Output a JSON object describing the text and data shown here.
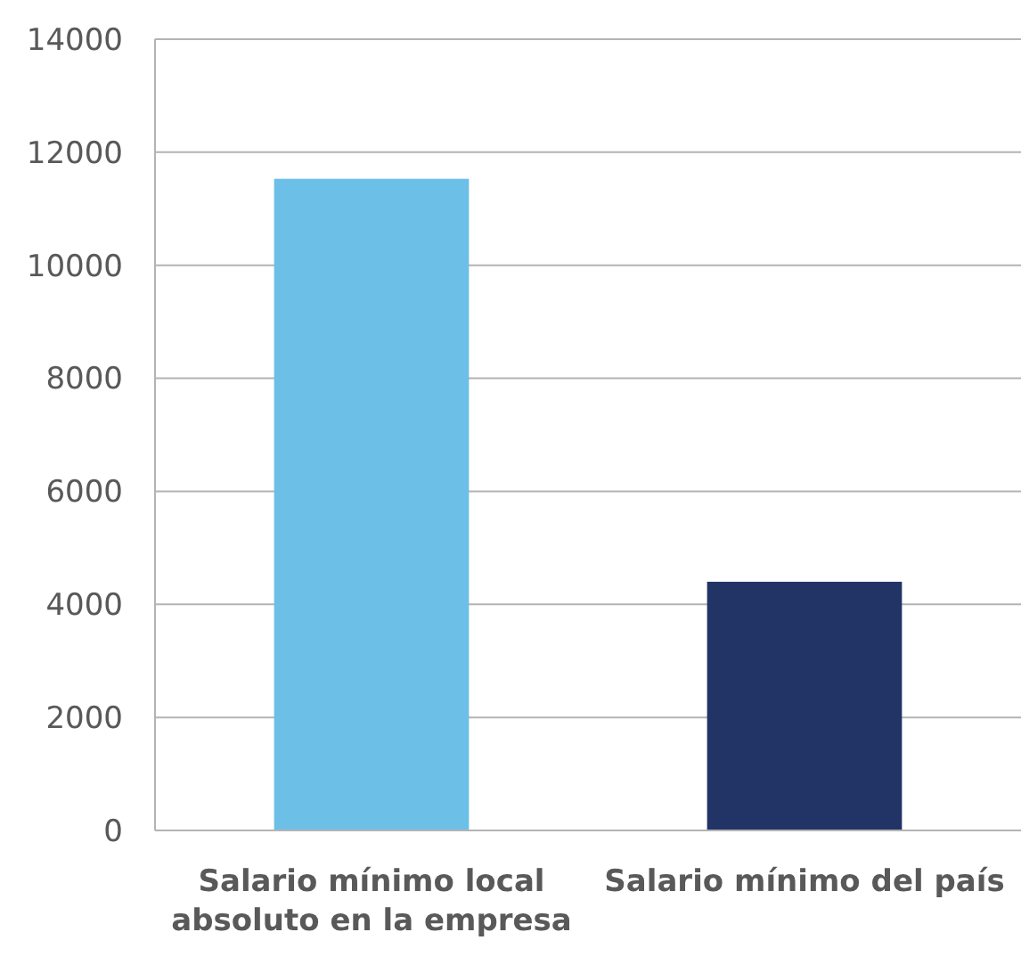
{
  "chart_data": {
    "type": "bar",
    "categories": [
      "Salario mínimo local absoluto en la empresa",
      "Salario mínimo del país"
    ],
    "colors": [
      "#6cbfe6",
      "#223366"
    ],
    "values": [
      11530,
      4400
    ],
    "ylim": [
      0,
      14000
    ],
    "yticks": [
      0,
      2000,
      4000,
      6000,
      8000,
      10000,
      12000,
      14000
    ],
    "grid": "y"
  }
}
